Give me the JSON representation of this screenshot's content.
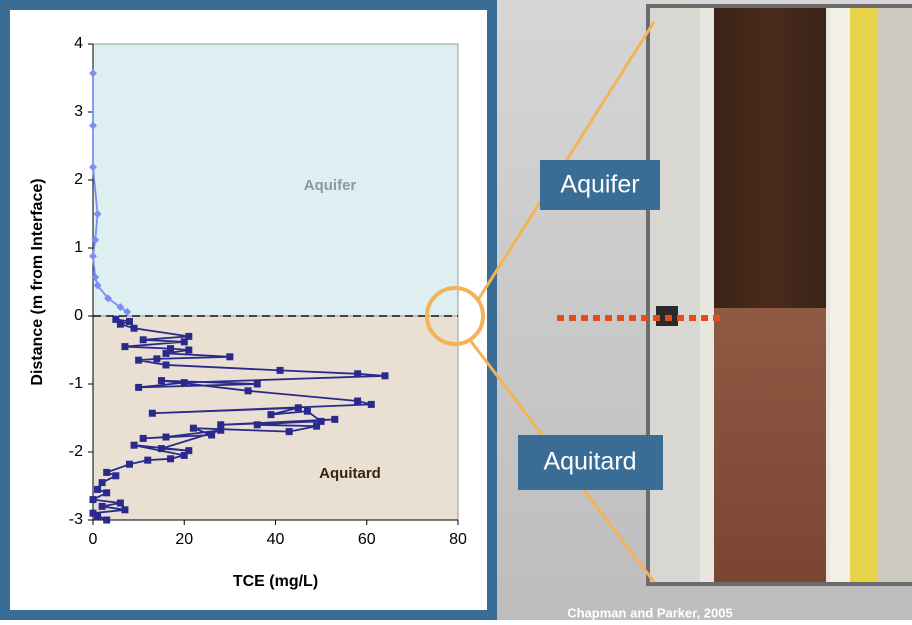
{
  "chart_data": {
    "type": "line",
    "x_label": "TCE (mg/L)",
    "y_label": "Distance (m from Interface)",
    "annotations": [
      "Aquifer",
      "Aquitard"
    ],
    "xlim": [
      0,
      80
    ],
    "xticks": [
      0,
      20,
      40,
      60,
      80
    ],
    "ylim": [
      -3,
      4
    ],
    "yticks": [
      -3,
      -2,
      -1,
      0,
      1,
      2,
      3,
      4
    ],
    "series": [
      {
        "color": "#7b8ff0",
        "marker": "diamond",
        "x": [
          0,
          0,
          0,
          1,
          0.5,
          0,
          0.5,
          1,
          3.3,
          6,
          7.5
        ],
        "values": [
          3.57,
          2.8,
          2.19,
          1.5,
          1.12,
          0.88,
          0.57,
          0.45,
          0.26,
          0.13,
          0.06
        ]
      },
      {
        "color": "#2a2a8c",
        "marker": "square",
        "x": [
          5,
          8,
          6,
          9,
          21,
          11,
          20,
          7,
          17,
          21,
          16,
          30,
          14,
          10,
          16,
          41,
          58,
          64,
          20,
          10,
          36,
          15,
          34,
          58,
          61,
          13,
          45,
          39,
          47,
          50,
          28,
          53,
          36,
          49,
          43,
          22,
          26,
          11,
          16,
          28,
          15,
          21,
          9,
          20,
          17,
          12,
          8,
          3,
          5,
          2,
          1,
          3,
          0,
          6,
          2,
          7,
          0,
          3,
          1
        ],
        "values": [
          -0.05,
          -0.08,
          -0.12,
          -0.18,
          -0.3,
          -0.35,
          -0.38,
          -0.45,
          -0.48,
          -0.5,
          -0.55,
          -0.6,
          -0.63,
          -0.65,
          -0.72,
          -0.8,
          -0.85,
          -0.88,
          -0.98,
          -1.05,
          -1.0,
          -0.95,
          -1.1,
          -1.25,
          -1.3,
          -1.43,
          -1.35,
          -1.45,
          -1.4,
          -1.55,
          -1.6,
          -1.52,
          -1.6,
          -1.62,
          -1.7,
          -1.65,
          -1.75,
          -1.8,
          -1.78,
          -1.68,
          -1.95,
          -1.98,
          -1.9,
          -2.05,
          -2.1,
          -2.12,
          -2.18,
          -2.3,
          -2.35,
          -2.45,
          -2.55,
          -2.6,
          -2.7,
          -2.75,
          -2.8,
          -2.85,
          -2.9,
          -3.0,
          -2.95
        ]
      }
    ]
  },
  "photo": {
    "labels": [
      "Aquifer",
      "Aquitard"
    ],
    "credit": "Chapman and Parker, 2005"
  }
}
